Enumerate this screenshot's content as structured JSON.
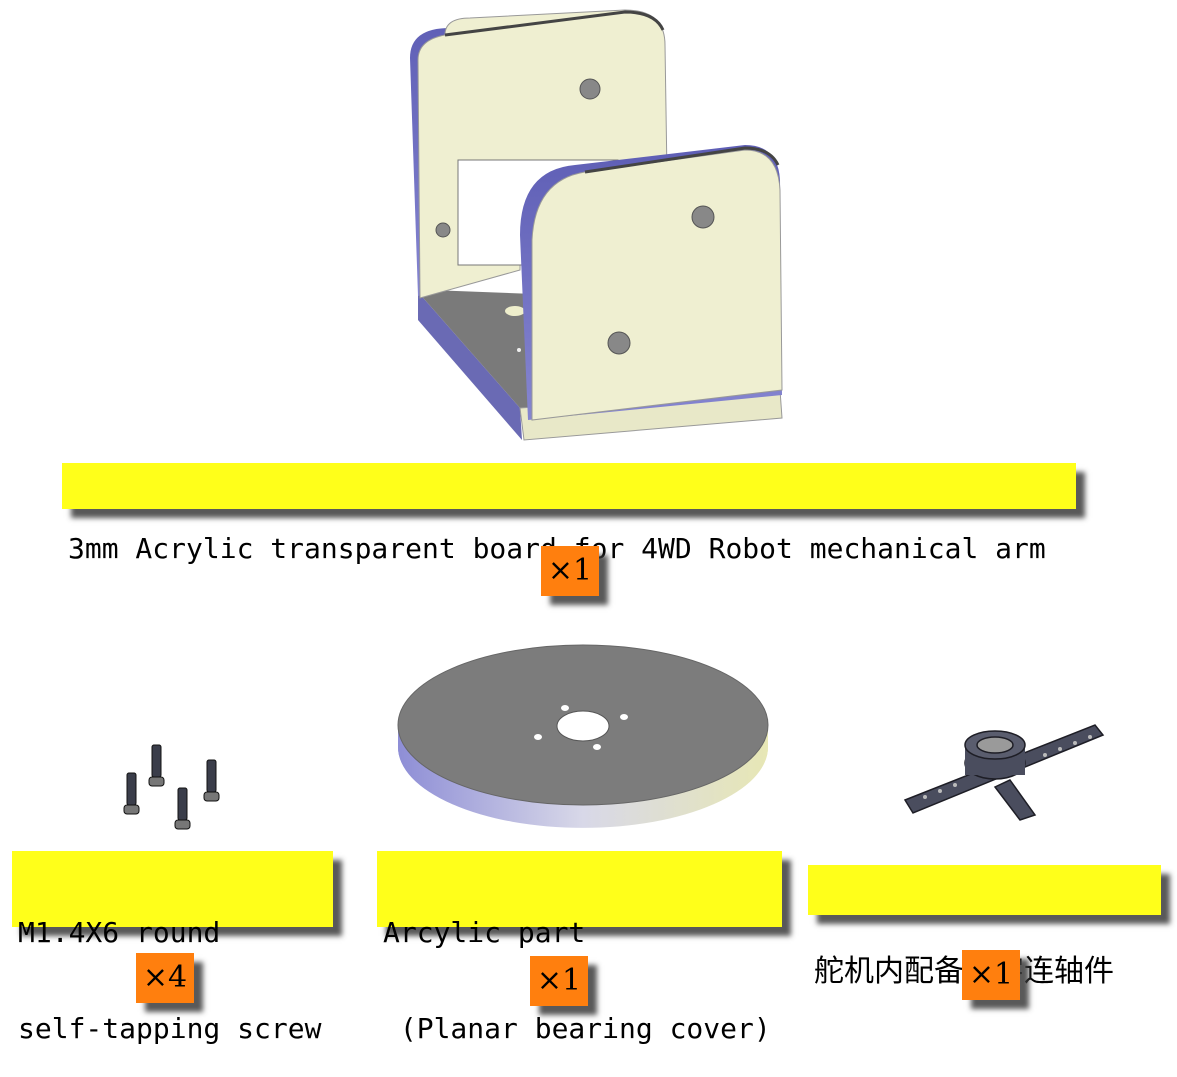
{
  "parts": [
    {
      "label_lines": [
        "3mm Acrylic transparent board for 4WD Robot mechanical arm"
      ],
      "quantity": "×1",
      "icon": "acrylic-u-bracket-icon"
    },
    {
      "label_lines": [
        "M1.4X6 round",
        "self-tapping screw"
      ],
      "quantity": "×4",
      "icon": "screw-icon"
    },
    {
      "label_lines": [
        "Arcylic part",
        " (Planar bearing cover)"
      ],
      "quantity": "×1",
      "icon": "bearing-cover-disc-icon"
    },
    {
      "label_lines": [
        "舵机内配备十字连轴件"
      ],
      "quantity": "×1",
      "icon": "servo-cross-horn-icon"
    }
  ]
}
